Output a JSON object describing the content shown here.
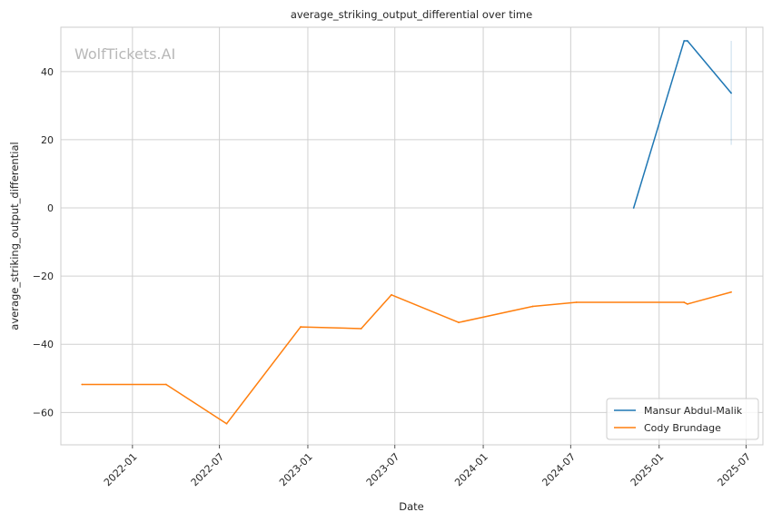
{
  "chart_data": {
    "type": "line",
    "title": "average_striking_output_differential over time",
    "xlabel": "Date",
    "ylabel": "average_striking_output_differential",
    "watermark": "WolfTickets.AI",
    "x_ticks": [
      "2022-01",
      "2022-07",
      "2023-01",
      "2023-07",
      "2024-01",
      "2024-07",
      "2025-01",
      "2025-07"
    ],
    "y_ticks": [
      -60,
      -40,
      -20,
      0,
      20,
      40
    ],
    "xlim": [
      "2021-08-05",
      "2025-08-05"
    ],
    "ylim": [
      -69.5,
      53
    ],
    "grid": true,
    "legend_position": "lower-right",
    "series": [
      {
        "name": "Mansur Abdul-Malik",
        "color": "#1f77b4",
        "points": [
          {
            "x": "2024-11-09",
            "y": 0
          },
          {
            "x": "2025-02-22",
            "y": 49
          },
          {
            "x": "2025-03-01",
            "y": 49
          },
          {
            "x": "2025-05-31",
            "y": 33.7
          }
        ],
        "band": {
          "x": "2025-05-31",
          "low": 18.5,
          "high": 49
        }
      },
      {
        "name": "Cody Brundage",
        "color": "#ff7f0e",
        "points": [
          {
            "x": "2021-09-18",
            "y": -51.8
          },
          {
            "x": "2022-03-12",
            "y": -51.8
          },
          {
            "x": "2022-07-16",
            "y": -63.3
          },
          {
            "x": "2022-12-17",
            "y": -34.9
          },
          {
            "x": "2023-04-22",
            "y": -35.4
          },
          {
            "x": "2023-06-24",
            "y": -25.5
          },
          {
            "x": "2023-11-11",
            "y": -33.6
          },
          {
            "x": "2024-04-13",
            "y": -28.9
          },
          {
            "x": "2024-07-13",
            "y": -27.7
          },
          {
            "x": "2025-02-22",
            "y": -27.7
          },
          {
            "x": "2025-03-01",
            "y": -28.2
          },
          {
            "x": "2025-05-31",
            "y": -24.7
          }
        ]
      }
    ]
  }
}
